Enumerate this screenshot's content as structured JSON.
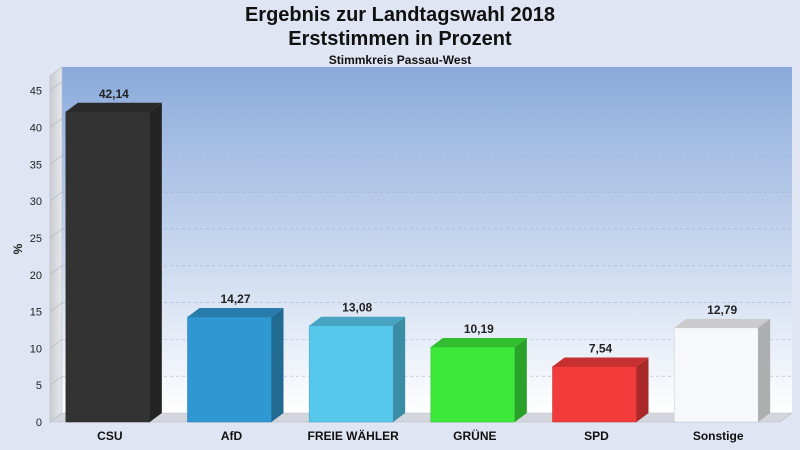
{
  "chart_data": {
    "type": "bar",
    "title": "Ergebnis zur Landtagswahl 2018",
    "subtitle": "Erststimmen in Prozent",
    "caption": "Stimmkreis Passau-West",
    "ylabel": "%",
    "xlabel": "",
    "categories": [
      "CSU",
      "AfD",
      "FREIE WÄHLER",
      "GRÜNE",
      "SPD",
      "Sonstige"
    ],
    "values": [
      42.14,
      14.27,
      13.08,
      10.19,
      7.54,
      12.79
    ],
    "value_labels": [
      "42,14",
      "14,27",
      "13,08",
      "10,19",
      "7,54",
      "12,79"
    ],
    "colors": [
      "#333333",
      "#2f97d1",
      "#55c8ec",
      "#3ce83a",
      "#f23b3b",
      "#f7f8fb"
    ],
    "ylim": [
      0,
      47
    ],
    "yticks": [
      0,
      5,
      10,
      15,
      20,
      25,
      30,
      35,
      40,
      45
    ],
    "grid": true,
    "legend": "none"
  }
}
